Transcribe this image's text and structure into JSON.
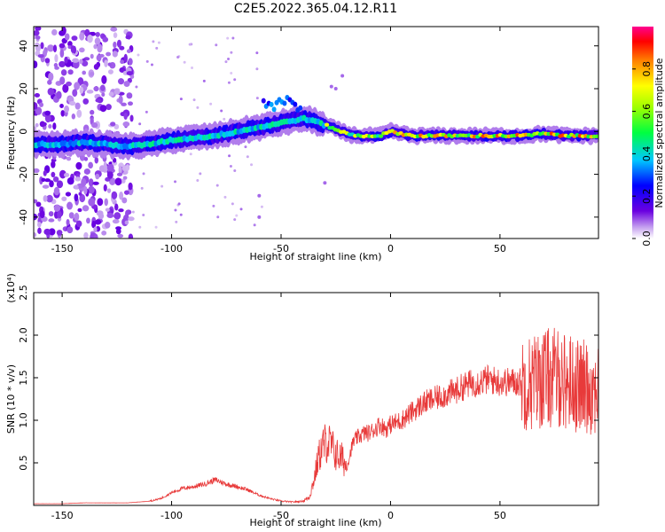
{
  "title": "C2E5.2022.365.04.12.R11",
  "colors": {
    "snr_line": "#e83a3a",
    "axis": "#000000",
    "background": "#ffffff"
  },
  "chart_data": [
    {
      "type": "heatmap",
      "name": "spectrogram",
      "xlabel": "Height of straight line (km)",
      "ylabel": "Frequency (Hz)",
      "xlim": [
        -163,
        95
      ],
      "ylim": [
        -50,
        49
      ],
      "xticks": [
        -150,
        -100,
        -50,
        0,
        50
      ],
      "yticks": [
        -40,
        -20,
        0,
        20,
        40
      ],
      "grid": false,
      "colorbar": {
        "label": "Normalized spectral amplitude",
        "range": [
          0,
          1
        ],
        "ticks": [
          "0.0",
          "0.2",
          "0.4",
          "0.6",
          "0.8"
        ],
        "colormap": "rainbow"
      },
      "ridge": {
        "x_km": [
          -163,
          -150,
          -140,
          -130,
          -120,
          -110,
          -100,
          -90,
          -80,
          -70,
          -60,
          -50,
          -45,
          -40,
          -35,
          -30,
          -25,
          -20,
          -15,
          -10,
          -5,
          0,
          10,
          20,
          30,
          40,
          50,
          60,
          70,
          80,
          90,
          95
        ],
        "frequency_hz": [
          -6,
          -6,
          -5,
          -6,
          -7,
          -6,
          -4,
          -3,
          -2,
          0,
          2,
          4,
          5,
          6,
          5,
          3,
          1,
          -1,
          -2,
          -2,
          -2,
          0,
          -2,
          -2,
          -2,
          -2,
          -2,
          -2,
          -1,
          -2,
          -2,
          -2
        ]
      }
    },
    {
      "type": "line",
      "name": "snr",
      "xlabel": "Height of straight line (km)",
      "ylabel": "SNR (10 * v/v)",
      "y_multiplier": "(x10⁴)",
      "xlim": [
        -163,
        95
      ],
      "ylim": [
        0,
        2.5
      ],
      "xticks": [
        -150,
        -100,
        -50,
        0,
        50
      ],
      "yticks": [
        0.5,
        1.0,
        1.5,
        2.0,
        2.5
      ],
      "ytick_labels": [
        "0.5",
        "1.0",
        "1.5",
        "2.0",
        "2.5"
      ],
      "grid": false,
      "series": [
        {
          "x": [
            -163,
            -150,
            -140,
            -130,
            -120,
            -110,
            -105,
            -100,
            -95,
            -90,
            -85,
            -80,
            -75,
            -70,
            -65,
            -60,
            -55,
            -50,
            -45,
            -40,
            -37,
            -35,
            -33,
            -31,
            -29,
            -27,
            -25,
            -22,
            -20,
            -17,
            -15,
            -12,
            -10,
            -7,
            -5,
            -2,
            0,
            5,
            10,
            15,
            20,
            25,
            30,
            35,
            40,
            45,
            50,
            55,
            60,
            65,
            70,
            75,
            78,
            80,
            83,
            85,
            88,
            90,
            92,
            95
          ],
          "y": [
            0.02,
            0.02,
            0.03,
            0.03,
            0.03,
            0.05,
            0.08,
            0.15,
            0.2,
            0.22,
            0.25,
            0.3,
            0.25,
            0.22,
            0.18,
            0.12,
            0.08,
            0.05,
            0.04,
            0.05,
            0.1,
            0.3,
            0.55,
            0.7,
            0.75,
            0.7,
            0.6,
            0.55,
            0.45,
            0.75,
            0.8,
            0.85,
            0.85,
            0.9,
            0.95,
            0.9,
            0.95,
            1.0,
            1.1,
            1.2,
            1.25,
            1.3,
            1.35,
            1.42,
            1.45,
            1.48,
            1.45,
            1.45,
            1.45,
            1.45,
            1.5,
            1.5,
            1.5,
            1.45,
            1.45,
            1.4,
            1.4,
            1.4,
            1.35,
            1.4
          ]
        }
      ]
    }
  ]
}
